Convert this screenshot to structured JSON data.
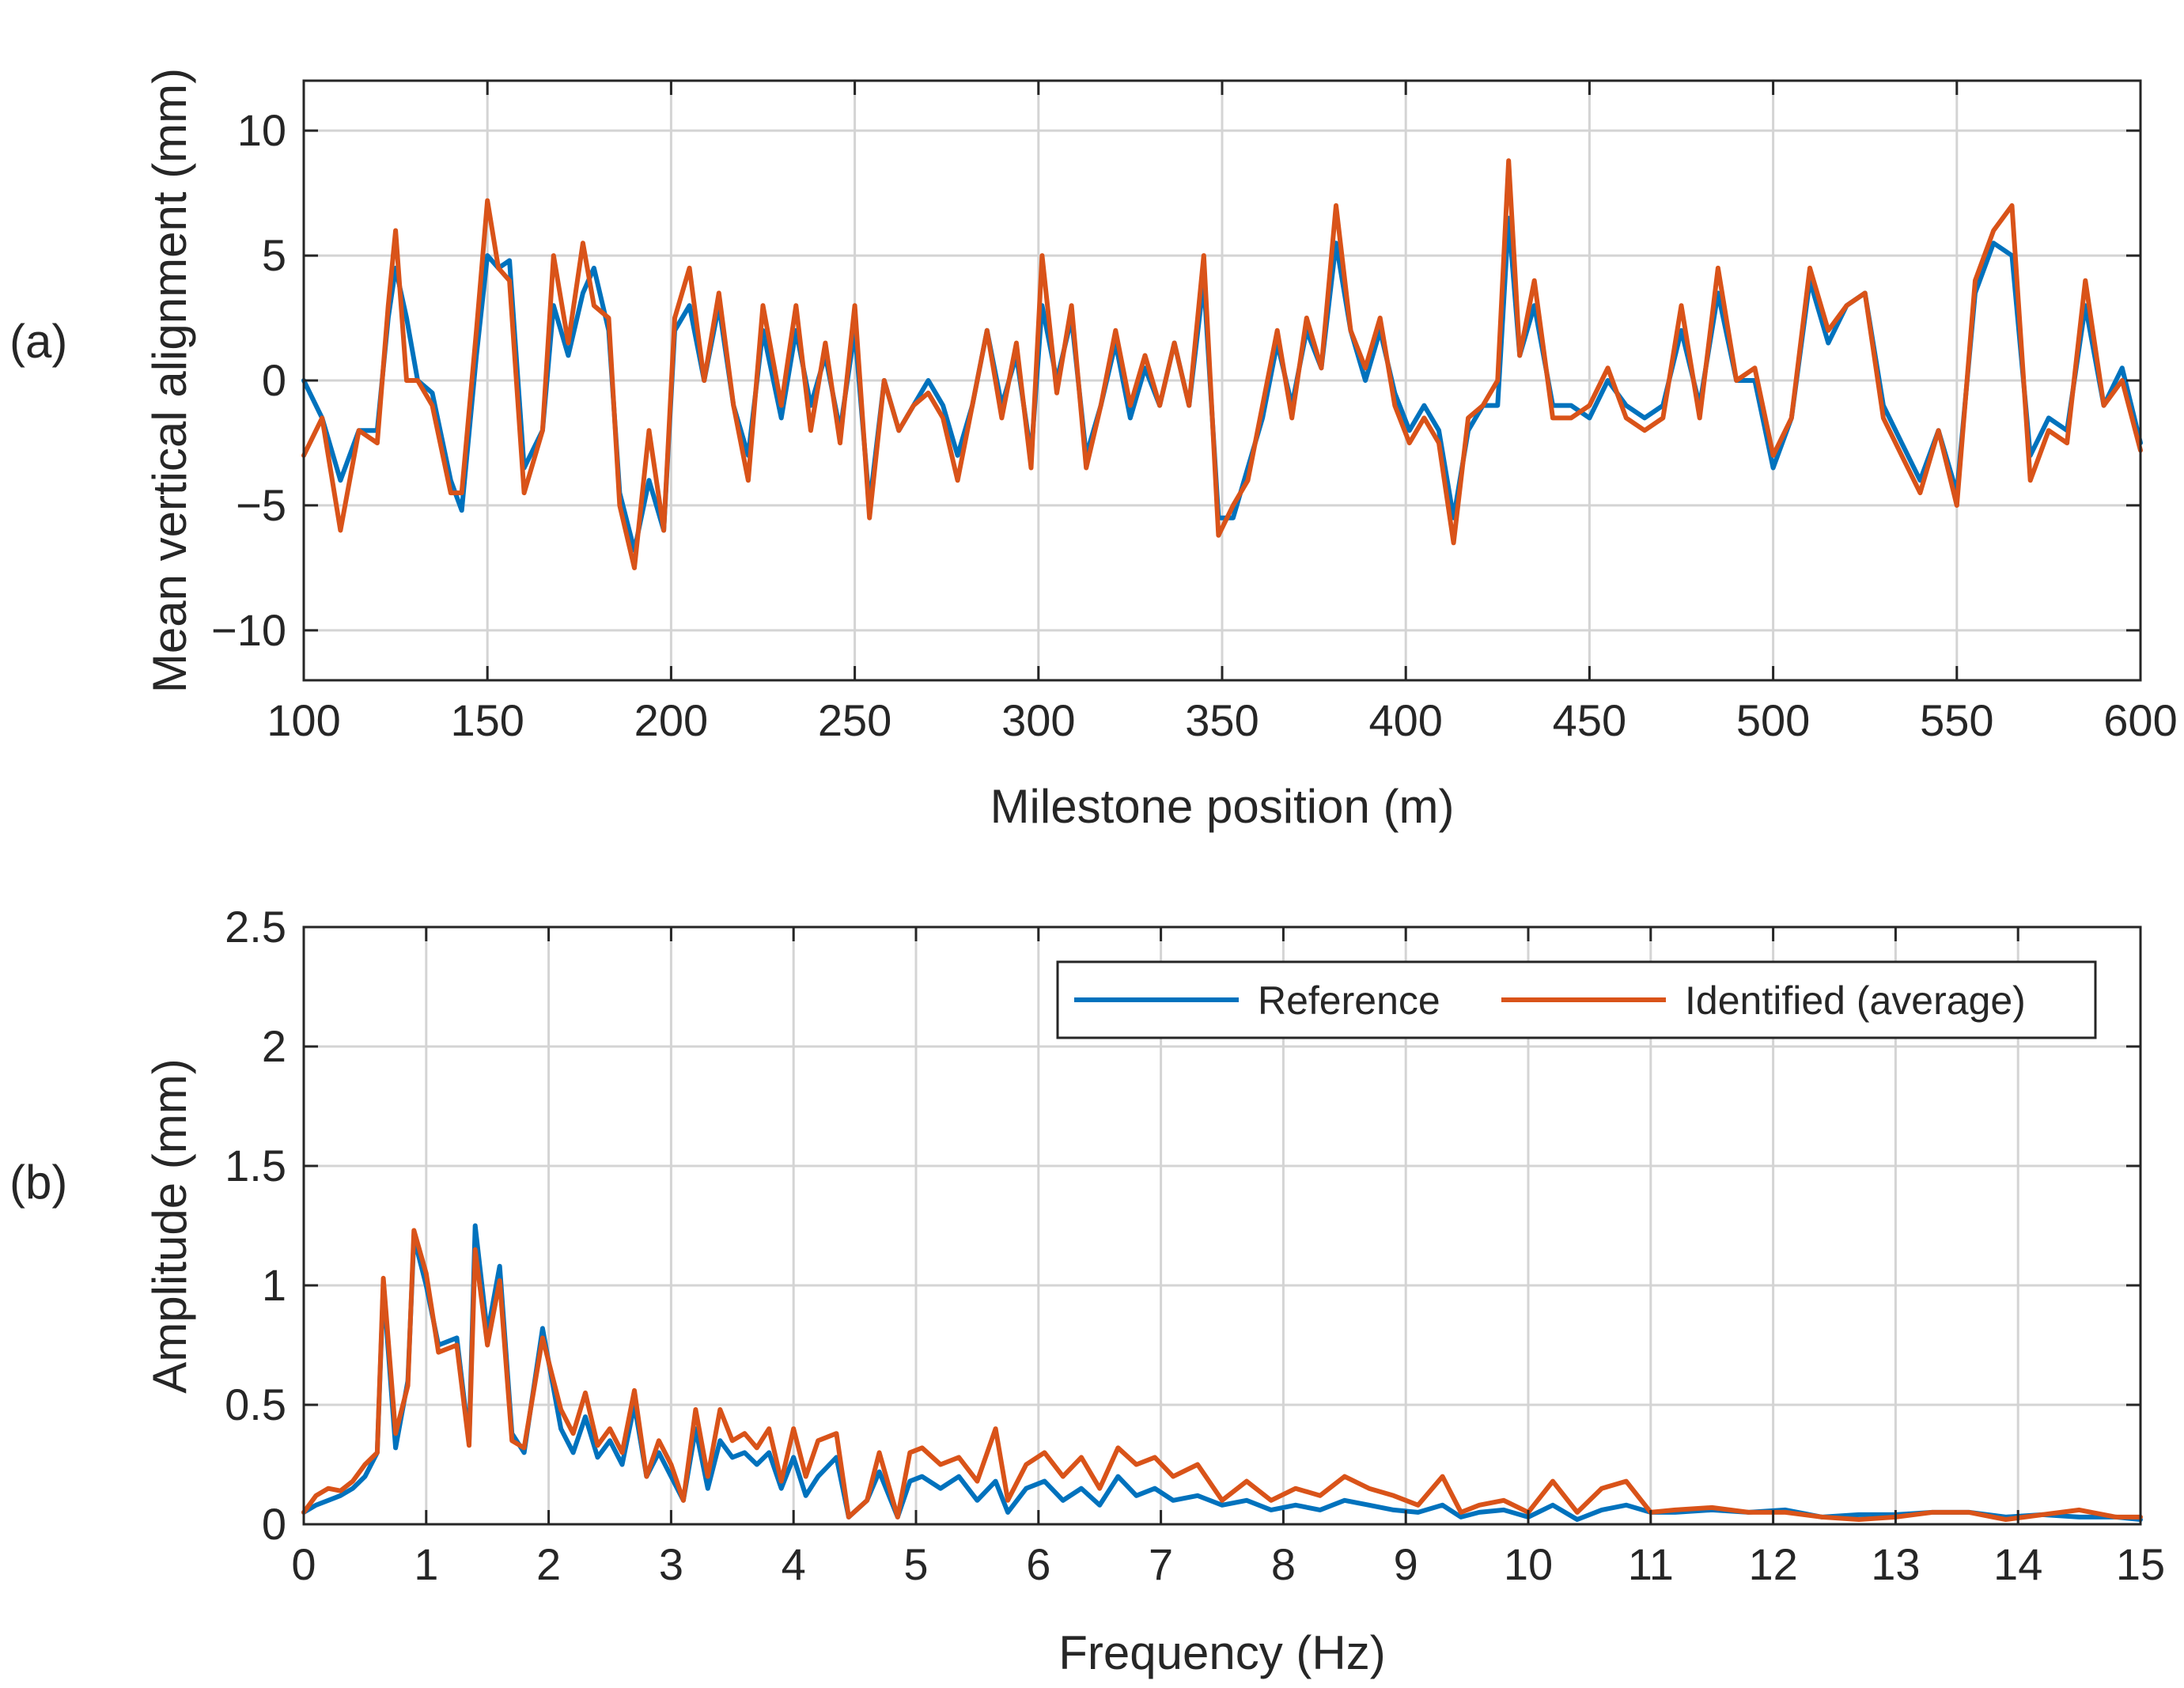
{
  "chart_data": [
    {
      "type": "line",
      "panel_label": "(a)",
      "xlabel": "Milestone position (m)",
      "ylabel": "Mean vertical alignment (mm)",
      "xlim": [
        100,
        600
      ],
      "ylim": [
        -12,
        12
      ],
      "xticks": [
        100,
        150,
        200,
        250,
        300,
        350,
        400,
        450,
        500,
        550,
        600
      ],
      "yticks": [
        -10,
        -5,
        0,
        5,
        10
      ],
      "xtick_labels": [
        "100",
        "150",
        "200",
        "250",
        "300",
        "350",
        "400",
        "450",
        "500",
        "550",
        "600"
      ],
      "ytick_labels": [
        "−10",
        "−5",
        "0",
        "5",
        "10"
      ],
      "grid": true,
      "series": [
        {
          "name": "Reference",
          "color": "#0072BD",
          "x": [
            100,
            105,
            110,
            115,
            120,
            123,
            125,
            128,
            131,
            135,
            140,
            143,
            147,
            150,
            153,
            156,
            160,
            165,
            168,
            172,
            176,
            179,
            183,
            186,
            190,
            194,
            198,
            201,
            205,
            209,
            213,
            217,
            221,
            225,
            230,
            234,
            238,
            242,
            246,
            250,
            254,
            258,
            262,
            266,
            270,
            274,
            278,
            282,
            286,
            290,
            294,
            298,
            301,
            305,
            309,
            313,
            317,
            321,
            325,
            329,
            333,
            337,
            341,
            345,
            349,
            353,
            357,
            361,
            365,
            369,
            373,
            377,
            381,
            385,
            389,
            393,
            397,
            401,
            405,
            409,
            413,
            417,
            421,
            425,
            428,
            431,
            435,
            440,
            445,
            450,
            455,
            460,
            465,
            470,
            475,
            480,
            485,
            490,
            495,
            500,
            505,
            510,
            515,
            520,
            525,
            530,
            535,
            540,
            545,
            550,
            555,
            560,
            565,
            570,
            575,
            580,
            585,
            590,
            595,
            600
          ],
          "values": [
            0,
            -1.5,
            -4,
            -2,
            -2,
            2.5,
            4.5,
            2.5,
            0,
            -0.5,
            -4,
            -5.2,
            1,
            5,
            4.5,
            4.8,
            -3.5,
            -2,
            3,
            1,
            3.5,
            4.5,
            2,
            -4.5,
            -6.8,
            -4,
            -6,
            2,
            3,
            0,
            3,
            -1,
            -3,
            2,
            -1.5,
            2,
            -1,
            1,
            -2,
            2,
            -5,
            0,
            -2,
            -1,
            0,
            -1,
            -3,
            -1,
            2,
            -1,
            1,
            -3,
            3,
            0,
            2.5,
            -3,
            -1,
            1.5,
            -1.5,
            0.5,
            -1,
            1.5,
            -1,
            4,
            -5.5,
            -5.5,
            -3.5,
            -1.5,
            1.5,
            -1,
            2,
            0.5,
            5.5,
            2,
            0,
            2,
            -0.5,
            -2,
            -1,
            -2,
            -5.5,
            -2,
            -1,
            -1,
            6.5,
            1,
            3,
            -1,
            -1,
            -1.5,
            0,
            -1,
            -1.5,
            -1,
            2,
            -1,
            3.5,
            0,
            0,
            -3.5,
            -1.5,
            4,
            1.5,
            3,
            3.5,
            -1,
            -2.5,
            -4,
            -2,
            -4.5,
            3.5,
            5.5,
            5,
            -3,
            -1.5,
            -2,
            3,
            -1,
            0.5,
            -2.5
          ]
        },
        {
          "name": "Identified (average)",
          "color": "#D95319",
          "x": [
            100,
            105,
            110,
            115,
            120,
            123,
            125,
            128,
            131,
            135,
            140,
            143,
            147,
            150,
            153,
            156,
            160,
            165,
            168,
            172,
            176,
            179,
            183,
            186,
            190,
            194,
            198,
            201,
            205,
            209,
            213,
            217,
            221,
            225,
            230,
            234,
            238,
            242,
            246,
            250,
            254,
            258,
            262,
            266,
            270,
            274,
            278,
            282,
            286,
            290,
            294,
            298,
            301,
            305,
            309,
            313,
            317,
            321,
            325,
            329,
            333,
            337,
            341,
            345,
            349,
            353,
            357,
            361,
            365,
            369,
            373,
            377,
            381,
            385,
            389,
            393,
            397,
            401,
            405,
            409,
            413,
            417,
            421,
            425,
            428,
            431,
            435,
            440,
            445,
            450,
            455,
            460,
            465,
            470,
            475,
            480,
            485,
            490,
            495,
            500,
            505,
            510,
            515,
            520,
            525,
            530,
            535,
            540,
            545,
            550,
            555,
            560,
            565,
            570,
            575,
            580,
            585,
            590,
            595,
            600
          ],
          "values": [
            -3,
            -1.5,
            -6,
            -2,
            -2.5,
            3,
            6,
            0,
            0,
            -1,
            -4.5,
            -4.5,
            2,
            7.2,
            4.5,
            4,
            -4.5,
            -2,
            5,
            1.5,
            5.5,
            3,
            2.5,
            -5,
            -7.5,
            -2,
            -6,
            2.5,
            4.5,
            0,
            3.5,
            -1,
            -4,
            3,
            -1,
            3,
            -2,
            1.5,
            -2.5,
            3,
            -5.5,
            0,
            -2,
            -1,
            -0.5,
            -1.5,
            -4,
            -1,
            2,
            -1.5,
            1.5,
            -3.5,
            5,
            -0.5,
            3,
            -3.5,
            -1,
            2,
            -1,
            1,
            -1,
            1.5,
            -1,
            5,
            -6.2,
            -5,
            -4,
            -1,
            2,
            -1.5,
            2.5,
            0.5,
            7,
            2,
            0.5,
            2.5,
            -1,
            -2.5,
            -1.5,
            -2.5,
            -6.5,
            -1.5,
            -1,
            0,
            8.8,
            1,
            4,
            -1.5,
            -1.5,
            -1,
            0.5,
            -1.5,
            -2,
            -1.5,
            3,
            -1.5,
            4.5,
            0,
            0.5,
            -3,
            -1.5,
            4.5,
            2,
            3,
            3.5,
            -1.5,
            -3,
            -4.5,
            -2,
            -5,
            4,
            6,
            7,
            -4,
            -2,
            -2.5,
            4,
            -1,
            0,
            -2.8
          ]
        }
      ]
    },
    {
      "type": "line",
      "panel_label": "(b)",
      "xlabel": "Frequency (Hz)",
      "ylabel": "Amplitude (mm)",
      "xlim": [
        0,
        15
      ],
      "ylim": [
        0,
        2.5
      ],
      "xticks": [
        0,
        1,
        2,
        3,
        4,
        5,
        6,
        7,
        8,
        9,
        10,
        11,
        12,
        13,
        14,
        15
      ],
      "yticks": [
        0,
        0.5,
        1,
        1.5,
        2,
        2.5
      ],
      "xtick_labels": [
        "0",
        "1",
        "2",
        "3",
        "4",
        "5",
        "6",
        "7",
        "8",
        "9",
        "10",
        "11",
        "12",
        "13",
        "14",
        "15"
      ],
      "ytick_labels": [
        "0",
        "0.5",
        "1",
        "1.5",
        "2",
        "2.5"
      ],
      "grid": true,
      "legend": {
        "position": "top-right",
        "entries": [
          "Reference",
          "Identified (average)"
        ]
      },
      "series": [
        {
          "name": "Reference",
          "color": "#0072BD",
          "x": [
            0,
            0.1,
            0.2,
            0.3,
            0.4,
            0.5,
            0.6,
            0.65,
            0.75,
            0.85,
            0.9,
            1.0,
            1.1,
            1.25,
            1.35,
            1.4,
            1.5,
            1.6,
            1.7,
            1.8,
            1.95,
            2.1,
            2.2,
            2.3,
            2.4,
            2.5,
            2.6,
            2.7,
            2.8,
            2.9,
            3.0,
            3.1,
            3.2,
            3.3,
            3.4,
            3.5,
            3.6,
            3.7,
            3.8,
            3.9,
            4.0,
            4.1,
            4.2,
            4.35,
            4.45,
            4.6,
            4.7,
            4.85,
            4.95,
            5.05,
            5.2,
            5.35,
            5.5,
            5.65,
            5.75,
            5.9,
            6.05,
            6.2,
            6.35,
            6.5,
            6.65,
            6.8,
            6.95,
            7.1,
            7.3,
            7.5,
            7.7,
            7.9,
            8.1,
            8.3,
            8.5,
            8.7,
            8.9,
            9.1,
            9.3,
            9.45,
            9.6,
            9.8,
            10.0,
            10.2,
            10.4,
            10.6,
            10.8,
            11.0,
            11.2,
            11.5,
            11.8,
            12.1,
            12.4,
            12.7,
            13.0,
            13.3,
            13.6,
            13.9,
            14.2,
            14.5,
            14.8,
            15.0
          ],
          "values": [
            0.05,
            0.08,
            0.1,
            0.12,
            0.15,
            0.2,
            0.3,
            1.0,
            0.32,
            0.6,
            1.2,
            1.0,
            0.75,
            0.78,
            0.35,
            1.25,
            0.8,
            1.08,
            0.38,
            0.3,
            0.82,
            0.4,
            0.3,
            0.45,
            0.28,
            0.35,
            0.25,
            0.5,
            0.2,
            0.3,
            0.2,
            0.1,
            0.4,
            0.15,
            0.35,
            0.28,
            0.3,
            0.25,
            0.3,
            0.15,
            0.28,
            0.12,
            0.2,
            0.28,
            0.03,
            0.1,
            0.22,
            0.03,
            0.18,
            0.2,
            0.15,
            0.2,
            0.1,
            0.18,
            0.05,
            0.15,
            0.18,
            0.1,
            0.15,
            0.08,
            0.2,
            0.12,
            0.15,
            0.1,
            0.12,
            0.08,
            0.1,
            0.06,
            0.08,
            0.06,
            0.1,
            0.08,
            0.06,
            0.05,
            0.08,
            0.03,
            0.05,
            0.06,
            0.03,
            0.08,
            0.02,
            0.06,
            0.08,
            0.05,
            0.05,
            0.06,
            0.05,
            0.06,
            0.03,
            0.04,
            0.04,
            0.05,
            0.05,
            0.03,
            0.04,
            0.03,
            0.03,
            0.02
          ]
        },
        {
          "name": "Identified (average)",
          "color": "#D95319",
          "x": [
            0,
            0.1,
            0.2,
            0.3,
            0.4,
            0.5,
            0.6,
            0.65,
            0.75,
            0.85,
            0.9,
            1.0,
            1.1,
            1.25,
            1.35,
            1.4,
            1.5,
            1.6,
            1.7,
            1.8,
            1.95,
            2.1,
            2.2,
            2.3,
            2.4,
            2.5,
            2.6,
            2.7,
            2.8,
            2.9,
            3.0,
            3.1,
            3.2,
            3.3,
            3.4,
            3.5,
            3.6,
            3.7,
            3.8,
            3.9,
            4.0,
            4.1,
            4.2,
            4.35,
            4.45,
            4.6,
            4.7,
            4.85,
            4.95,
            5.05,
            5.2,
            5.35,
            5.5,
            5.65,
            5.75,
            5.9,
            6.05,
            6.2,
            6.35,
            6.5,
            6.65,
            6.8,
            6.95,
            7.1,
            7.3,
            7.5,
            7.7,
            7.9,
            8.1,
            8.3,
            8.5,
            8.7,
            8.9,
            9.1,
            9.3,
            9.45,
            9.6,
            9.8,
            10.0,
            10.2,
            10.4,
            10.6,
            10.8,
            11.0,
            11.2,
            11.5,
            11.8,
            12.1,
            12.4,
            12.7,
            13.0,
            13.3,
            13.6,
            13.9,
            14.2,
            14.5,
            14.8,
            15.0
          ],
          "values": [
            0.05,
            0.12,
            0.15,
            0.14,
            0.18,
            0.25,
            0.3,
            1.03,
            0.38,
            0.58,
            1.23,
            1.05,
            0.72,
            0.75,
            0.33,
            1.15,
            0.75,
            1.02,
            0.35,
            0.32,
            0.78,
            0.48,
            0.38,
            0.55,
            0.33,
            0.4,
            0.3,
            0.56,
            0.2,
            0.35,
            0.25,
            0.1,
            0.48,
            0.2,
            0.48,
            0.35,
            0.38,
            0.32,
            0.4,
            0.18,
            0.4,
            0.2,
            0.35,
            0.38,
            0.03,
            0.1,
            0.3,
            0.03,
            0.3,
            0.32,
            0.25,
            0.28,
            0.18,
            0.4,
            0.1,
            0.25,
            0.3,
            0.2,
            0.28,
            0.15,
            0.32,
            0.25,
            0.28,
            0.2,
            0.25,
            0.1,
            0.18,
            0.1,
            0.15,
            0.12,
            0.2,
            0.15,
            0.12,
            0.08,
            0.2,
            0.05,
            0.08,
            0.1,
            0.05,
            0.18,
            0.05,
            0.15,
            0.18,
            0.05,
            0.06,
            0.07,
            0.05,
            0.05,
            0.03,
            0.02,
            0.03,
            0.05,
            0.05,
            0.02,
            0.04,
            0.06,
            0.03,
            0.03
          ]
        }
      ]
    }
  ]
}
